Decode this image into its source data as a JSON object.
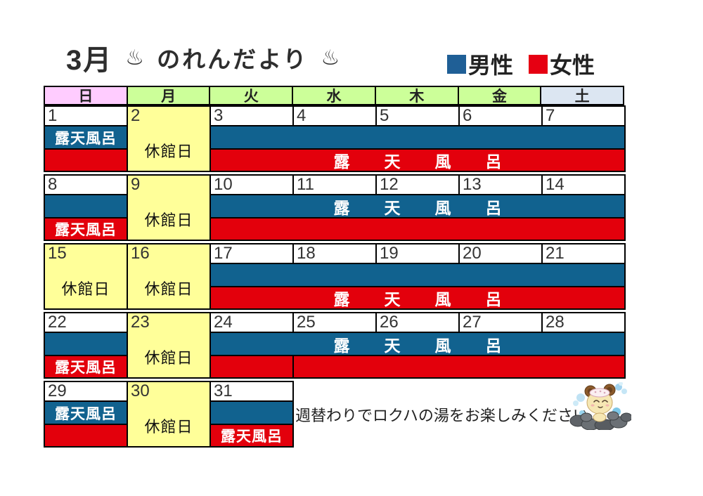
{
  "title": {
    "month": "3月",
    "onsen_symbol": "♨",
    "name": "のれんだより"
  },
  "legend": {
    "male_label": "男性",
    "male_color": "#1F5F96",
    "female_label": "女性",
    "female_color": "#E60012"
  },
  "weekday_header": [
    {
      "label": "日",
      "bg": "#FFCCFF"
    },
    {
      "label": "月",
      "bg": "#CCFF99"
    },
    {
      "label": "火",
      "bg": "#CCFF99"
    },
    {
      "label": "水",
      "bg": "#CCFF99"
    },
    {
      "label": "木",
      "bg": "#CCFF99"
    },
    {
      "label": "金",
      "bg": "#CCFF99"
    },
    {
      "label": "土",
      "bg": "#DCE6F2"
    }
  ],
  "colors": {
    "male_band": "#11628F",
    "female_band": "#E3000C",
    "closed_bg": "#FFFF99",
    "border": "#000000"
  },
  "labels": {
    "closed": "休館日",
    "open_air_bath": "露天風呂"
  },
  "weeks": [
    {
      "cells": [
        {
          "type": "bath",
          "date": "1",
          "male_text": "露天風呂",
          "female_text": ""
        },
        {
          "type": "closed",
          "date": "2"
        },
        {
          "type": "merged",
          "dates": [
            "3",
            "4",
            "5",
            "6",
            "7"
          ],
          "male_text": "",
          "female_text": "露　天　風　呂"
        }
      ]
    },
    {
      "cells": [
        {
          "type": "bath",
          "date": "8",
          "male_text": "",
          "female_text": "露天風呂"
        },
        {
          "type": "closed",
          "date": "9"
        },
        {
          "type": "merged",
          "dates": [
            "10",
            "11",
            "12",
            "13",
            "14"
          ],
          "male_text": "露　天　風　呂",
          "female_text": ""
        }
      ]
    },
    {
      "cells": [
        {
          "type": "closed",
          "date": "15"
        },
        {
          "type": "closed",
          "date": "16"
        },
        {
          "type": "merged",
          "dates": [
            "17",
            "18",
            "19",
            "20",
            "21"
          ],
          "male_text": "",
          "female_text": "露　天　風　呂"
        }
      ]
    },
    {
      "cells": [
        {
          "type": "bath",
          "date": "22",
          "male_text": "",
          "female_text": "露天風呂"
        },
        {
          "type": "closed",
          "date": "23"
        },
        {
          "type": "merged",
          "dates": [
            "24",
            "25",
            "26",
            "27",
            "28"
          ],
          "male_text": "露　天　風　呂",
          "female_text": "",
          "female_divider": true
        }
      ]
    },
    {
      "cells": [
        {
          "type": "bath",
          "date": "29",
          "male_text": "露天風呂",
          "female_text": ""
        },
        {
          "type": "closed",
          "date": "30"
        },
        {
          "type": "bath",
          "date": "31",
          "male_text": "",
          "female_text": "露天風呂"
        }
      ]
    }
  ],
  "footer": {
    "message": "週替わりでロクハの湯をお楽しみください"
  }
}
